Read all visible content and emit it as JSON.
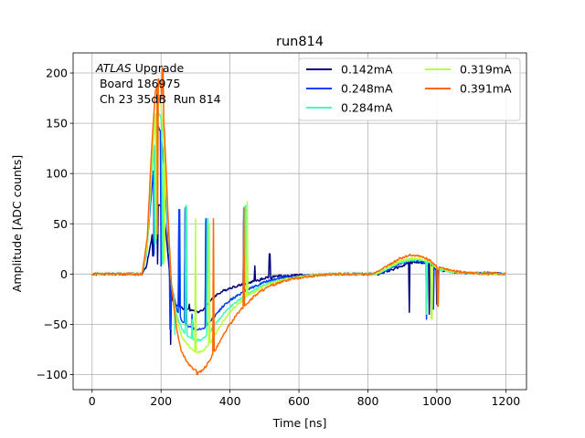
{
  "chart_data": {
    "type": "line",
    "title": "run814",
    "xlabel": "Time [ns]",
    "ylabel": "Amplitude [ADC counts]",
    "xlim": [
      -55,
      1260
    ],
    "ylim": [
      -115,
      220
    ],
    "xticks": [
      0,
      200,
      400,
      600,
      800,
      1000,
      1200
    ],
    "yticks": [
      -100,
      -50,
      0,
      50,
      100,
      150,
      200
    ],
    "xtick_labels": [
      "0",
      "200",
      "400",
      "600",
      "800",
      "1000",
      "1200"
    ],
    "ytick_labels": [
      "−100",
      "−50",
      "0",
      "50",
      "100",
      "150",
      "200"
    ],
    "grid": true,
    "legend_position": "top-right",
    "annotation": {
      "line1_italic": "ATLAS",
      "line1_rest": " Upgrade",
      "line2": " Board 186975",
      "line3": " Ch 23 35dB  Run 814"
    },
    "series": [
      {
        "name": "0.142mA",
        "color": "#00007f",
        "points": [
          [
            0,
            0
          ],
          [
            145,
            0
          ],
          [
            158,
            8
          ],
          [
            170,
            30
          ],
          [
            182,
            55
          ],
          [
            192,
            70
          ],
          [
            200,
            68
          ],
          [
            210,
            55
          ],
          [
            220,
            20
          ],
          [
            228,
            -15
          ],
          [
            235,
            -28
          ],
          [
            250,
            -32
          ],
          [
            270,
            -35
          ],
          [
            290,
            -36
          ],
          [
            305,
            -38
          ],
          [
            320,
            -36
          ],
          [
            340,
            -28
          ],
          [
            360,
            -21
          ],
          [
            380,
            -17
          ],
          [
            400,
            -14
          ],
          [
            420,
            -12
          ],
          [
            440,
            -10
          ],
          [
            460,
            -8
          ],
          [
            480,
            -6
          ],
          [
            500,
            -4
          ],
          [
            520,
            -3
          ],
          [
            540,
            -2
          ],
          [
            560,
            -2
          ],
          [
            600,
            -1
          ],
          [
            650,
            -1
          ],
          [
            700,
            0
          ],
          [
            760,
            0
          ],
          [
            800,
            0
          ],
          [
            830,
            0
          ],
          [
            860,
            3
          ],
          [
            890,
            7
          ],
          [
            920,
            11
          ],
          [
            950,
            12
          ],
          [
            980,
            10
          ],
          [
            1000,
            4
          ],
          [
            1050,
            2
          ],
          [
            1100,
            1
          ],
          [
            1150,
            1
          ],
          [
            1200,
            0
          ]
        ],
        "spikes": [
          [
            177,
            18
          ],
          [
            190,
            10
          ],
          [
            228,
            -70
          ],
          [
            252,
            63
          ],
          [
            270,
            64
          ],
          [
            282,
            -30
          ],
          [
            330,
            53
          ],
          [
            352,
            -25
          ],
          [
            440,
            58
          ],
          [
            472,
            8
          ],
          [
            485,
            -7
          ],
          [
            515,
            20
          ],
          [
            520,
            -10
          ],
          [
            920,
            -38
          ],
          [
            978,
            -40
          ],
          [
            1000,
            -30
          ]
        ]
      },
      {
        "name": "0.248mA",
        "color": "#0040ff",
        "points": [
          [
            0,
            0
          ],
          [
            145,
            0
          ],
          [
            158,
            20
          ],
          [
            172,
            80
          ],
          [
            185,
            130
          ],
          [
            192,
            148
          ],
          [
            200,
            140
          ],
          [
            210,
            100
          ],
          [
            220,
            40
          ],
          [
            230,
            -10
          ],
          [
            245,
            -35
          ],
          [
            260,
            -46
          ],
          [
            280,
            -52
          ],
          [
            300,
            -55
          ],
          [
            320,
            -55
          ],
          [
            340,
            -48
          ],
          [
            360,
            -40
          ],
          [
            380,
            -32
          ],
          [
            400,
            -26
          ],
          [
            420,
            -22
          ],
          [
            440,
            -17
          ],
          [
            460,
            -14
          ],
          [
            480,
            -11
          ],
          [
            500,
            -8
          ],
          [
            520,
            -6
          ],
          [
            560,
            -3
          ],
          [
            600,
            -2
          ],
          [
            650,
            -1
          ],
          [
            700,
            0
          ],
          [
            800,
            0
          ],
          [
            830,
            1
          ],
          [
            860,
            5
          ],
          [
            890,
            10
          ],
          [
            920,
            13
          ],
          [
            950,
            13
          ],
          [
            980,
            11
          ],
          [
            1000,
            5
          ],
          [
            1050,
            2
          ],
          [
            1100,
            1
          ],
          [
            1200,
            0
          ]
        ],
        "spikes": [
          [
            180,
            20
          ],
          [
            200,
            8
          ],
          [
            227,
            -55
          ],
          [
            253,
            64
          ],
          [
            270,
            66
          ],
          [
            290,
            -40
          ],
          [
            330,
            55
          ],
          [
            440,
            65
          ],
          [
            970,
            -45
          ],
          [
            990,
            -35
          ]
        ]
      },
      {
        "name": "0.284mA",
        "color": "#40ffb7",
        "points": [
          [
            0,
            0
          ],
          [
            145,
            0
          ],
          [
            160,
            25
          ],
          [
            172,
            95
          ],
          [
            185,
            150
          ],
          [
            192,
            160
          ],
          [
            200,
            155
          ],
          [
            210,
            115
          ],
          [
            220,
            50
          ],
          [
            230,
            -10
          ],
          [
            245,
            -40
          ],
          [
            260,
            -55
          ],
          [
            280,
            -62
          ],
          [
            300,
            -66
          ],
          [
            320,
            -65
          ],
          [
            340,
            -58
          ],
          [
            360,
            -49
          ],
          [
            380,
            -40
          ],
          [
            400,
            -33
          ],
          [
            420,
            -27
          ],
          [
            440,
            -22
          ],
          [
            460,
            -18
          ],
          [
            480,
            -14
          ],
          [
            500,
            -11
          ],
          [
            520,
            -8
          ],
          [
            560,
            -5
          ],
          [
            600,
            -3
          ],
          [
            650,
            -1
          ],
          [
            700,
            0
          ],
          [
            800,
            0
          ],
          [
            830,
            1
          ],
          [
            860,
            6
          ],
          [
            890,
            11
          ],
          [
            920,
            14
          ],
          [
            950,
            14
          ],
          [
            980,
            12
          ],
          [
            1000,
            5
          ],
          [
            1050,
            2
          ],
          [
            1100,
            1
          ],
          [
            1200,
            0
          ]
        ],
        "spikes": [
          [
            183,
            30
          ],
          [
            205,
            10
          ],
          [
            240,
            -60
          ],
          [
            273,
            68
          ],
          [
            290,
            -45
          ],
          [
            335,
            55
          ],
          [
            445,
            68
          ],
          [
            970,
            -40
          ]
        ]
      },
      {
        "name": "0.319mA",
        "color": "#b7ff40",
        "points": [
          [
            0,
            0
          ],
          [
            145,
            0
          ],
          [
            160,
            28
          ],
          [
            172,
            105
          ],
          [
            185,
            165
          ],
          [
            192,
            175
          ],
          [
            200,
            168
          ],
          [
            210,
            125
          ],
          [
            220,
            55
          ],
          [
            230,
            -10
          ],
          [
            245,
            -45
          ],
          [
            260,
            -62
          ],
          [
            280,
            -72
          ],
          [
            300,
            -78
          ],
          [
            320,
            -77
          ],
          [
            340,
            -70
          ],
          [
            360,
            -58
          ],
          [
            380,
            -47
          ],
          [
            400,
            -38
          ],
          [
            420,
            -31
          ],
          [
            440,
            -25
          ],
          [
            460,
            -20
          ],
          [
            480,
            -16
          ],
          [
            500,
            -12
          ],
          [
            520,
            -9
          ],
          [
            560,
            -5
          ],
          [
            600,
            -3
          ],
          [
            650,
            -1
          ],
          [
            700,
            0
          ],
          [
            800,
            0
          ],
          [
            830,
            1
          ],
          [
            860,
            7
          ],
          [
            890,
            12
          ],
          [
            920,
            15
          ],
          [
            950,
            15
          ],
          [
            980,
            13
          ],
          [
            1000,
            6
          ],
          [
            1050,
            2
          ],
          [
            1100,
            1
          ],
          [
            1200,
            0
          ]
        ],
        "spikes": [
          [
            186,
            35
          ],
          [
            210,
            12
          ],
          [
            280,
            -70
          ],
          [
            300,
            55
          ],
          [
            340,
            50
          ],
          [
            450,
            72
          ],
          [
            985,
            -45
          ]
        ]
      },
      {
        "name": "0.391mA",
        "color": "#ff6800",
        "points": [
          [
            0,
            0
          ],
          [
            145,
            0
          ],
          [
            160,
            35
          ],
          [
            172,
            120
          ],
          [
            183,
            180
          ],
          [
            192,
            195
          ],
          [
            200,
            185
          ],
          [
            210,
            140
          ],
          [
            220,
            60
          ],
          [
            230,
            -10
          ],
          [
            245,
            -55
          ],
          [
            260,
            -78
          ],
          [
            280,
            -90
          ],
          [
            300,
            -96
          ],
          [
            315,
            -97
          ],
          [
            330,
            -92
          ],
          [
            350,
            -80
          ],
          [
            370,
            -68
          ],
          [
            390,
            -55
          ],
          [
            410,
            -45
          ],
          [
            430,
            -36
          ],
          [
            450,
            -29
          ],
          [
            470,
            -22
          ],
          [
            490,
            -17
          ],
          [
            510,
            -13
          ],
          [
            540,
            -9
          ],
          [
            580,
            -5
          ],
          [
            620,
            -3
          ],
          [
            660,
            -1
          ],
          [
            700,
            0
          ],
          [
            800,
            0
          ],
          [
            830,
            2
          ],
          [
            860,
            9
          ],
          [
            890,
            15
          ],
          [
            920,
            19
          ],
          [
            950,
            18
          ],
          [
            980,
            14
          ],
          [
            1000,
            7
          ],
          [
            1050,
            3
          ],
          [
            1100,
            1
          ],
          [
            1200,
            0
          ]
        ],
        "spikes": [
          [
            190,
            40
          ],
          [
            205,
            205
          ],
          [
            230,
            -10
          ],
          [
            305,
            -100
          ],
          [
            352,
            55
          ],
          [
            440,
            66
          ],
          [
            1003,
            -32
          ]
        ]
      }
    ]
  }
}
